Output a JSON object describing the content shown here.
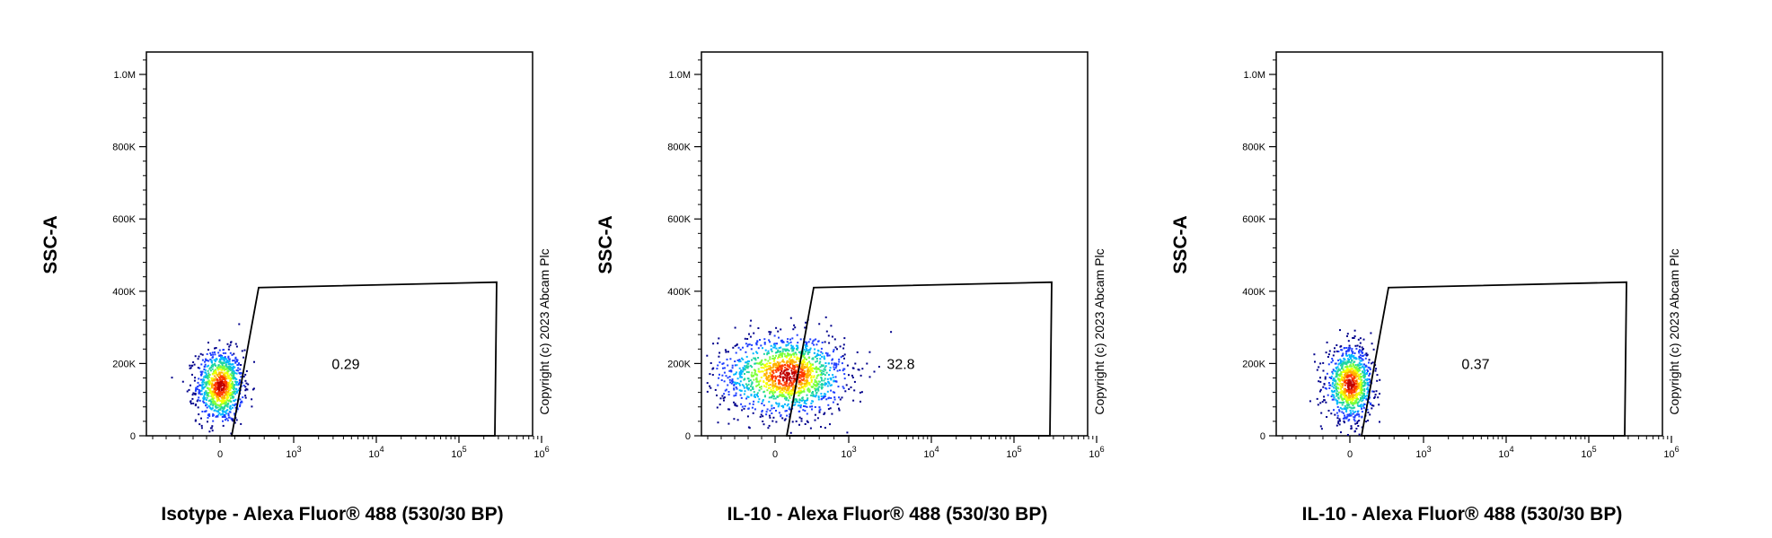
{
  "chart_data": [
    {
      "type": "scatter",
      "title": "",
      "xlabel": "Isotype - Alexa Fluor® 488 (530/30 BP)",
      "ylabel": "SSC-A",
      "x_scale": "biexponential",
      "x_tick_labels": [
        "0",
        "10^3",
        "10^4",
        "10^5",
        "10^6"
      ],
      "y_ticks": [
        0,
        200000,
        400000,
        600000,
        800000,
        1000000
      ],
      "y_tick_labels": [
        "0",
        "200K",
        "400K",
        "600K",
        "800K",
        "1.0M"
      ],
      "ylim": [
        0,
        1000000
      ],
      "gate": {
        "label": "0.29",
        "percent": 0.29
      },
      "population": {
        "x_center": 0,
        "x_spread": 150,
        "y_center": 140000,
        "y_spread": 50000
      },
      "copyright": "Copyright (c) 2023 Abcam Plc"
    },
    {
      "type": "scatter",
      "title": "",
      "xlabel": "IL-10 - Alexa Fluor® 488 (530/30 BP)",
      "ylabel": "SSC-A",
      "x_scale": "biexponential",
      "x_tick_labels": [
        "0",
        "10^3",
        "10^4",
        "10^5",
        "10^6"
      ],
      "y_ticks": [
        0,
        200000,
        400000,
        600000,
        800000,
        1000000
      ],
      "y_tick_labels": [
        "0",
        "200K",
        "400K",
        "600K",
        "800K",
        "1.0M"
      ],
      "ylim": [
        0,
        1000000
      ],
      "gate": {
        "label": "32.8",
        "percent": 32.8
      },
      "population": {
        "x_center": 200,
        "x_spread": 450,
        "y_center": 170000,
        "y_spread": 55000
      },
      "copyright": "Copyright (c) 2023 Abcam Plc"
    },
    {
      "type": "scatter",
      "title": "",
      "xlabel": "IL-10 - Alexa Fluor® 488 (530/30 BP)",
      "ylabel": "SSC-A",
      "x_scale": "biexponential",
      "x_tick_labels": [
        "0",
        "10^3",
        "10^4",
        "10^5",
        "10^6"
      ],
      "y_ticks": [
        0,
        200000,
        400000,
        600000,
        800000,
        1000000
      ],
      "y_tick_labels": [
        "0",
        "200K",
        "400K",
        "600K",
        "800K",
        "1.0M"
      ],
      "ylim": [
        0,
        1000000
      ],
      "gate": {
        "label": "0.37",
        "percent": 0.37
      },
      "population": {
        "x_center": 0,
        "x_spread": 150,
        "y_center": 145000,
        "y_spread": 50000
      },
      "copyright": "Copyright (c) 2023 Abcam Plc"
    }
  ],
  "colors": {
    "density": [
      "#00008b",
      "#1f3fff",
      "#00b7ff",
      "#1fd6a0",
      "#7dff3a",
      "#f6ff00",
      "#ffb000",
      "#ff3b00",
      "#c00000"
    ],
    "axis": "#000000"
  }
}
